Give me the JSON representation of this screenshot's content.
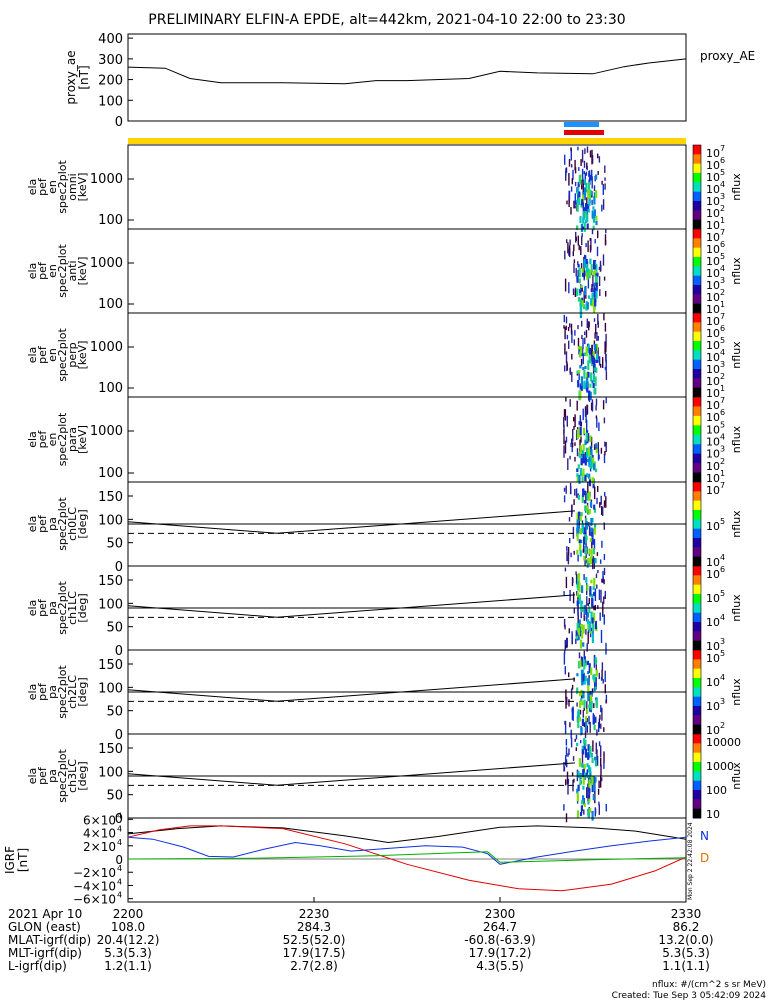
{
  "title": "PRELIMINARY ELFIN-A EPDE, alt=442km, 2021-04-10 22:00 to 23:30",
  "chart_data": [
    {
      "id": "proxy_ae",
      "type": "line",
      "ylabel_lines": [
        "proxy_ae",
        "[nT]"
      ],
      "right_label": "proxy_AE",
      "ylim": [
        0,
        420
      ],
      "yticks": [
        "400",
        "300",
        "200",
        "100",
        "0"
      ],
      "ytick_values": [
        400,
        300,
        200,
        100,
        0
      ],
      "x": [
        0,
        6,
        10,
        15,
        25,
        35,
        40,
        45,
        55,
        60,
        66,
        75,
        80,
        84,
        90
      ],
      "y": [
        260,
        255,
        205,
        185,
        185,
        180,
        195,
        195,
        205,
        240,
        232,
        228,
        262,
        280,
        300
      ]
    },
    {
      "id": "omni",
      "type": "heatmap",
      "ylabel_lines": [
        "ela",
        "pef",
        "en",
        "spec2plot",
        "omni",
        "[keV]"
      ],
      "yticks": [
        "1000",
        "100"
      ],
      "cbar_ticks": [
        "10",
        "10",
        "10",
        "10",
        "10",
        "10",
        "10"
      ],
      "cbar_exp": [
        "7",
        "6",
        "5",
        "4",
        "3",
        "2",
        "1"
      ],
      "cbar_label": "nflux"
    },
    {
      "id": "anti",
      "type": "heatmap",
      "ylabel_lines": [
        "ela",
        "pef",
        "en",
        "spec2plot",
        "anti",
        "[keV]"
      ],
      "yticks": [
        "1000",
        "100"
      ],
      "cbar_ticks": [
        "10",
        "10",
        "10",
        "10",
        "10",
        "10",
        "10"
      ],
      "cbar_exp": [
        "7",
        "6",
        "5",
        "4",
        "3",
        "2",
        "1"
      ],
      "cbar_label": "nflux"
    },
    {
      "id": "perp",
      "type": "heatmap",
      "ylabel_lines": [
        "ela",
        "pef",
        "en",
        "spec2plot",
        "perp",
        "[keV]"
      ],
      "yticks": [
        "1000",
        "100"
      ],
      "cbar_ticks": [
        "10",
        "10",
        "10",
        "10",
        "10",
        "10",
        "10"
      ],
      "cbar_exp": [
        "7",
        "6",
        "5",
        "4",
        "3",
        "2",
        "1"
      ],
      "cbar_label": "nflux"
    },
    {
      "id": "para",
      "type": "heatmap",
      "ylabel_lines": [
        "ela",
        "pef",
        "en",
        "spec2plot",
        "para",
        "[keV]"
      ],
      "yticks": [
        "1000",
        "100"
      ],
      "cbar_ticks": [
        "10",
        "10",
        "10",
        "10",
        "10",
        "10",
        "10"
      ],
      "cbar_exp": [
        "7",
        "6",
        "5",
        "4",
        "3",
        "2",
        "1"
      ],
      "cbar_label": "nflux"
    },
    {
      "id": "ch0LC",
      "type": "heatmap",
      "ylabel_lines": [
        "ela",
        "pef",
        "pa",
        "spec2plot",
        "ch0LC",
        "[deg]"
      ],
      "yticks": [
        "150",
        "100",
        "50",
        "0"
      ],
      "cbar_ticks": [
        "10",
        "10",
        "10"
      ],
      "cbar_exp": [
        "7",
        "5",
        "4"
      ],
      "cbar_label": "nflux"
    },
    {
      "id": "ch1LC",
      "type": "heatmap",
      "ylabel_lines": [
        "ela",
        "pef",
        "pa",
        "spec2plot",
        "ch1LC",
        "[deg]"
      ],
      "yticks": [
        "150",
        "100",
        "50",
        "0"
      ],
      "cbar_ticks": [
        "10",
        "10",
        "10",
        "10"
      ],
      "cbar_exp": [
        "6",
        "5",
        "4",
        "3"
      ],
      "cbar_label": "nflux"
    },
    {
      "id": "ch2LC",
      "type": "heatmap",
      "ylabel_lines": [
        "ela",
        "pef",
        "pa",
        "spec2plot",
        "ch2LC",
        "[deg]"
      ],
      "yticks": [
        "150",
        "100",
        "50",
        "0"
      ],
      "cbar_ticks": [
        "10",
        "10",
        "10",
        "10"
      ],
      "cbar_exp": [
        "5",
        "4",
        "3",
        "2"
      ],
      "cbar_label": "nflux"
    },
    {
      "id": "ch3LC",
      "type": "heatmap",
      "ylabel_lines": [
        "ela",
        "pef",
        "pa",
        "spec2plot",
        "ch3LC",
        "[deg]"
      ],
      "yticks": [
        "150",
        "100",
        "50",
        "0"
      ],
      "cbar_ticks": [
        "10000",
        "1000",
        "100",
        "10"
      ],
      "cbar_label": "nflux"
    },
    {
      "id": "igrf",
      "type": "line",
      "ylabel_lines": [
        "IGRF",
        "[nT]"
      ],
      "ylim": [
        -65000,
        62000
      ],
      "yticks": [
        "6×10",
        "4×10",
        "2×10",
        "0",
        "−2×10",
        "−4×10",
        "−6×10"
      ],
      "ytick_values": [
        60000,
        40000,
        20000,
        0,
        -20000,
        -40000,
        -60000
      ],
      "right_labels": [
        "N",
        "D"
      ],
      "series": [
        {
          "color": "#000000",
          "x": [
            0,
            8,
            15,
            25,
            35,
            42,
            50,
            60,
            66,
            75,
            82,
            90
          ],
          "y": [
            38000,
            46000,
            50000,
            47000,
            35000,
            25000,
            34000,
            48000,
            50000,
            47000,
            42000,
            30000
          ]
        },
        {
          "color": "#e00000",
          "x": [
            0,
            5,
            10,
            15,
            25,
            35,
            45,
            55,
            63,
            70,
            78,
            85,
            90
          ],
          "y": [
            33000,
            44000,
            50000,
            50000,
            46000,
            23000,
            -8000,
            -32000,
            -45000,
            -48000,
            -38000,
            -18000,
            3000
          ]
        },
        {
          "color": "#1030e0",
          "x": [
            0,
            4,
            9,
            13,
            17,
            22,
            27,
            31,
            36,
            42,
            48,
            54,
            58,
            60,
            66,
            72,
            78,
            84,
            90
          ],
          "y": [
            33000,
            30000,
            18000,
            4000,
            3000,
            15000,
            25000,
            20000,
            12000,
            16000,
            20000,
            18000,
            8000,
            -8000,
            3000,
            12000,
            20000,
            27000,
            33000
          ]
        },
        {
          "color": "#00b000",
          "x": [
            0,
            20,
            40,
            55,
            58,
            60,
            75,
            90
          ],
          "y": [
            0,
            1000,
            5000,
            10000,
            11000,
            -5000,
            -1000,
            2000
          ]
        }
      ]
    }
  ],
  "xticks": [
    "2200",
    "2230",
    "2300",
    "2330"
  ],
  "xtick_values": [
    0,
    30,
    60,
    90
  ],
  "ephemeris": {
    "labels": [
      "2021 Apr 10",
      "GLON (east)",
      "MLAT-igrf(dip)",
      "MLT-igrf(dip)",
      "L-igrf(dip)"
    ],
    "columns": [
      [
        "2200",
        "108.0",
        "20.4(12.2)",
        "5.3(5.3)",
        "1.2(1.1)"
      ],
      [
        "2230",
        "284.3",
        "52.5(52.0)",
        "17.9(17.5)",
        "2.7(2.8)"
      ],
      [
        "2300",
        "264.7",
        "-60.8(-63.9)",
        "17.9(17.2)",
        "4.3(5.5)"
      ],
      [
        "2330",
        "86.2",
        "13.2(0.0)",
        "5.3(5.3)",
        "1.1(1.1)"
      ]
    ]
  },
  "footer": {
    "units": "nflux: #/(cm^2 s sr MeV)",
    "created": "Created: Tue Sep  3 05:42:09 2024"
  },
  "side_stamp": "Mon Sep  2 22:42:08 2024",
  "colors": {
    "yellow_bar": "#ffd400",
    "marker_blue": "#1e90ff",
    "marker_red": "#e00000"
  }
}
